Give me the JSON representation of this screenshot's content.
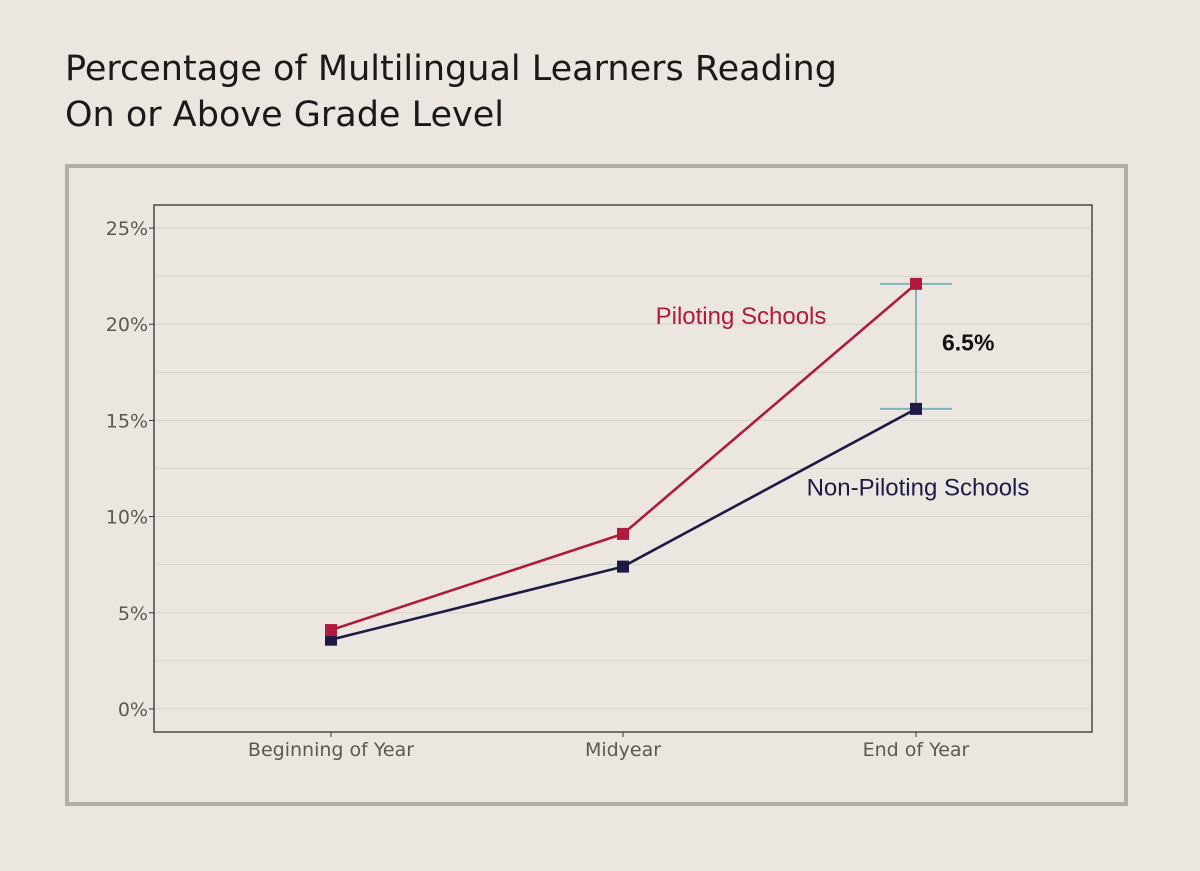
{
  "title_lines": [
    "Percentage of Multilingual Learners Reading",
    "On or Above Grade Level"
  ],
  "colors": {
    "background": "#ebe7e0",
    "piloting": "#b01a3c",
    "non_piloting": "#1e1a45",
    "gap_marker": "#7fb5bd",
    "grid": "#d8d4cc",
    "frame": "#b2afa9"
  },
  "chart_data": {
    "type": "line",
    "categories": [
      "Beginning of Year",
      "Midyear",
      "End of Year"
    ],
    "series": [
      {
        "name": "Piloting Schools",
        "values": [
          4.1,
          9.1,
          22.1
        ],
        "color": "#b01a3c"
      },
      {
        "name": "Non-Piloting Schools",
        "values": [
          3.6,
          7.4,
          15.6
        ],
        "color": "#1e1a45"
      }
    ],
    "ylim": [
      -1.2,
      26.2
    ],
    "yticks": [
      0,
      5,
      10,
      15,
      20,
      25
    ],
    "ytick_labels": [
      "0%",
      "5%",
      "10%",
      "15%",
      "20%",
      "25%"
    ],
    "grid": true,
    "annotation": {
      "category": "End of Year",
      "text": "6.5%"
    }
  }
}
